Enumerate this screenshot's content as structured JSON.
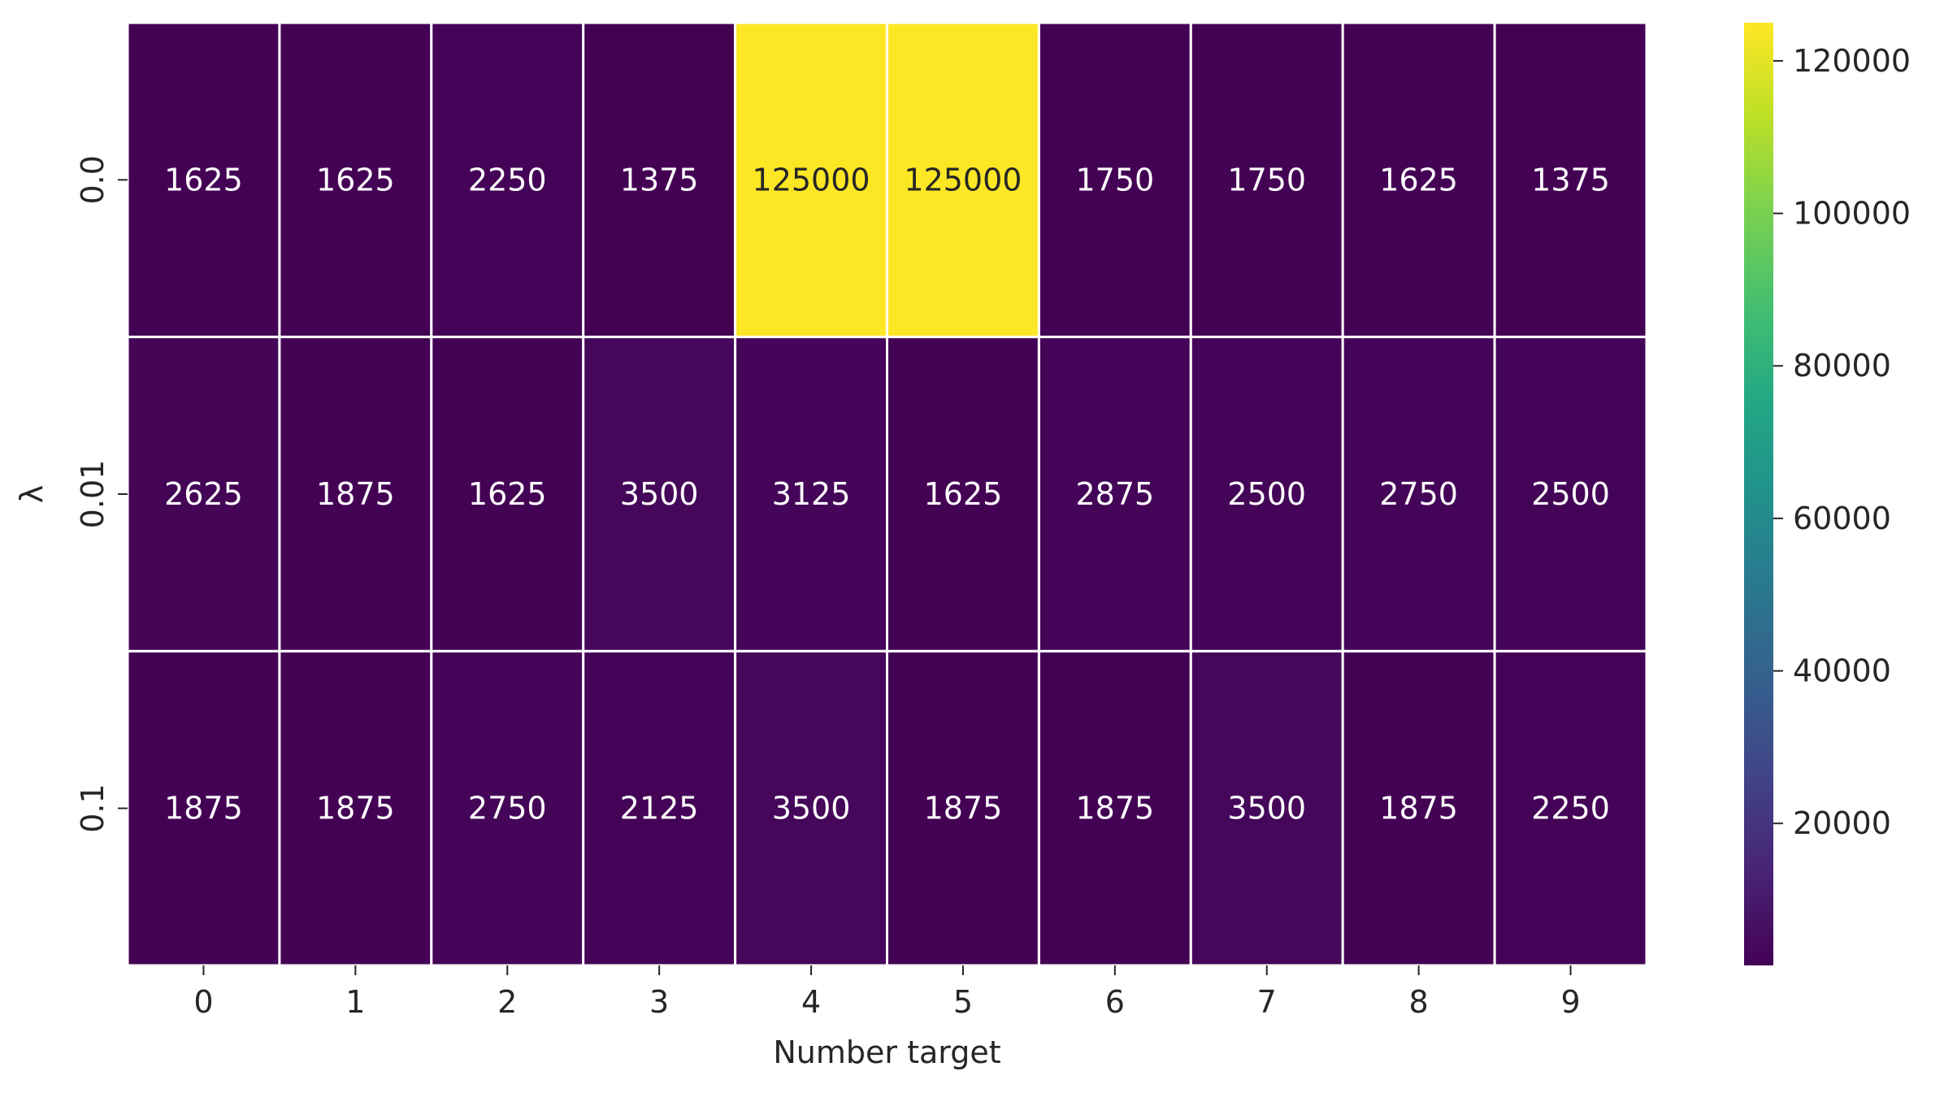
{
  "chart_data": {
    "type": "heatmap",
    "title": "",
    "xlabel": "Number target",
    "ylabel": "λ",
    "x_categories": [
      "0",
      "1",
      "2",
      "3",
      "4",
      "5",
      "6",
      "7",
      "8",
      "9"
    ],
    "y_categories": [
      "0.0",
      "0.01",
      "0.1"
    ],
    "values": [
      [
        1625,
        1625,
        2250,
        1375,
        125000,
        125000,
        1750,
        1750,
        1625,
        1375
      ],
      [
        2625,
        1875,
        1625,
        3500,
        3125,
        1625,
        2875,
        2500,
        2750,
        2500
      ],
      [
        1875,
        1875,
        2750,
        2125,
        3500,
        1875,
        1875,
        3500,
        1875,
        2250
      ]
    ],
    "colormap": "viridis",
    "color_range": [
      1375,
      125000
    ],
    "colorbar_ticks": [
      "20000",
      "40000",
      "60000",
      "80000",
      "100000",
      "120000"
    ],
    "colorbar_tick_values": [
      20000,
      40000,
      60000,
      80000,
      100000,
      120000
    ],
    "cell_border_color": "#ffffff",
    "grid": false,
    "legend": "colorbar-right"
  }
}
